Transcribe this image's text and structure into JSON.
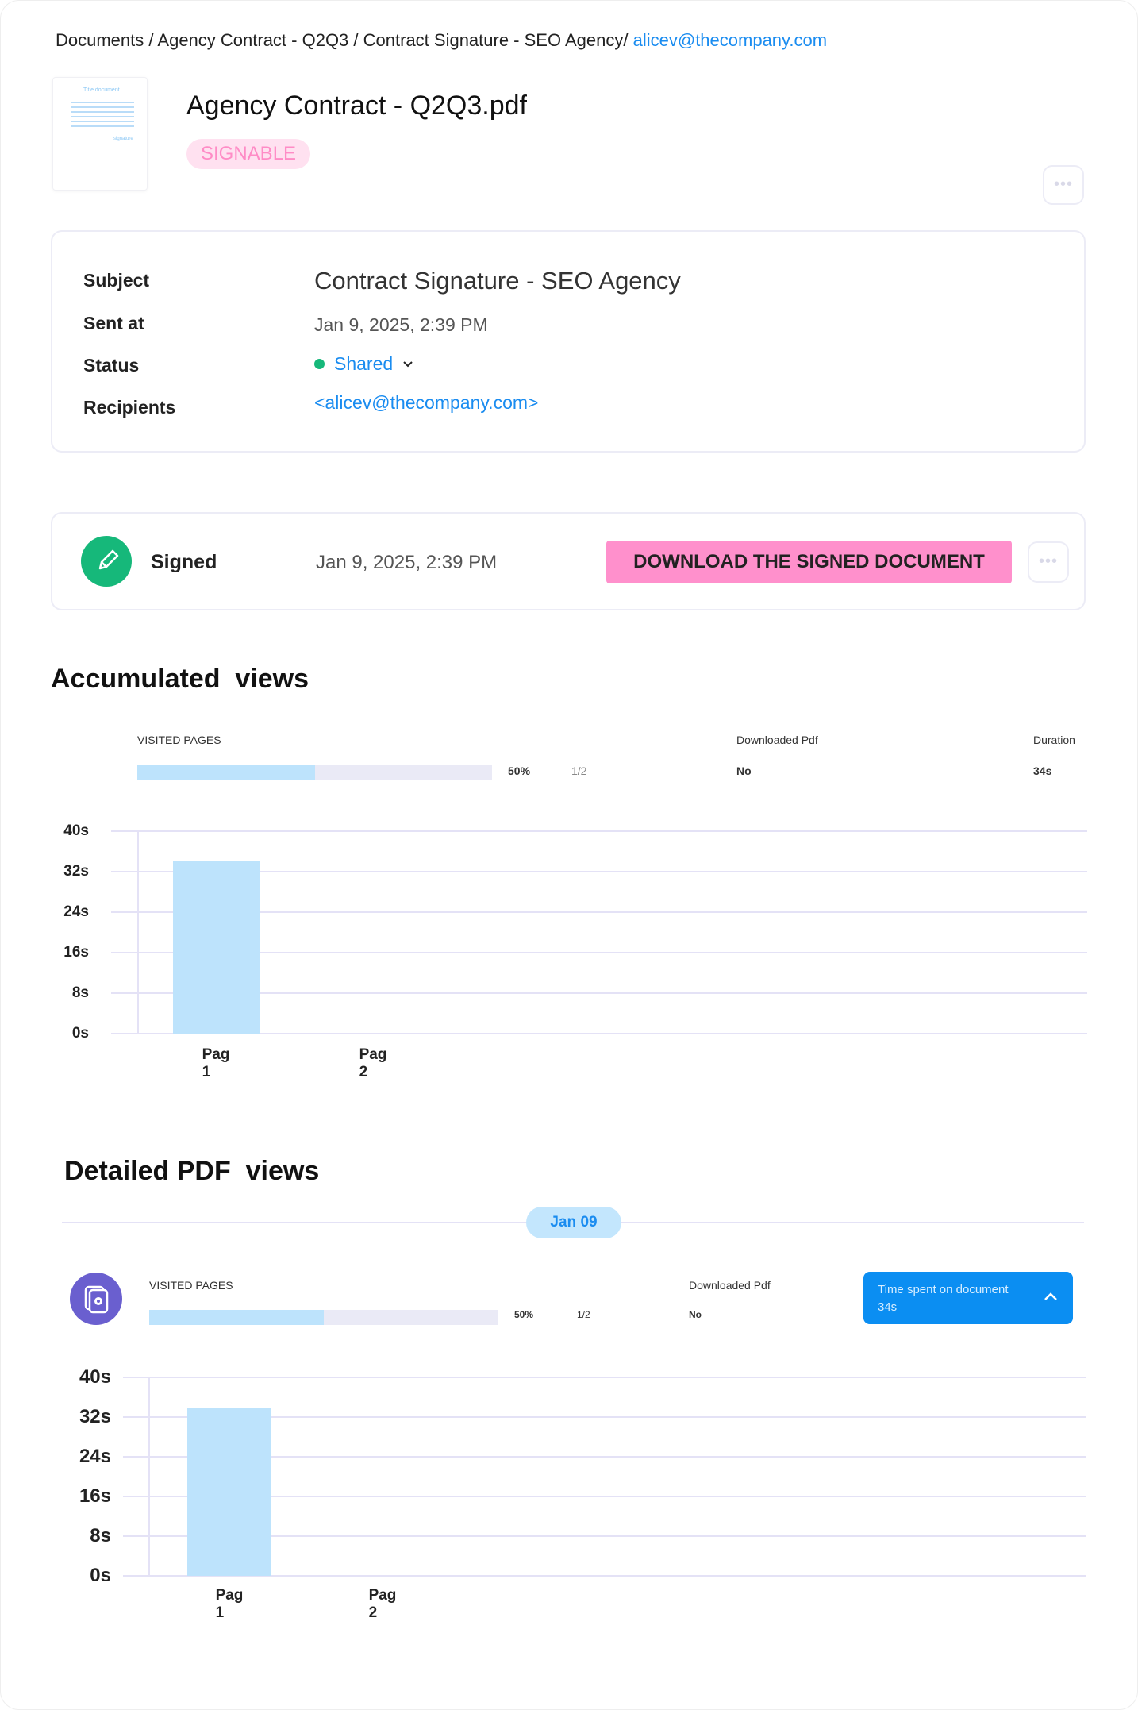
{
  "breadcrumb": {
    "items": [
      "Documents",
      "Agency Contract - Q2Q3",
      "Contract Signature - SEO Agency"
    ],
    "recipient": "alicev@thecompany.com"
  },
  "document": {
    "title": "Agency Contract - Q2Q3.pdf",
    "badge": "SIGNABLE",
    "thumbnail_text": [
      "Title document",
      "signature"
    ]
  },
  "info": {
    "subject_label": "Subject",
    "subject": "Contract Signature - SEO Agency",
    "sent_label": "Sent at",
    "sent": "Jan 9, 2025, 2:39 PM",
    "status_label": "Status",
    "status": "Shared",
    "status_color": "#16b87a",
    "recipients_label": "Recipients",
    "recipients": "<alicev@thecompany.com>"
  },
  "signed": {
    "label": "Signed",
    "date": "Jan 9, 2025, 2:39 PM",
    "download_label": "DOWNLOAD THE SIGNED DOCUMENT",
    "icon": "pencil-icon"
  },
  "more_label": "•••",
  "accumulated": {
    "title": "Accumulated  views",
    "visited_label": "VISITED PAGES",
    "visited_percent": "50%",
    "visited_fraction": "1/2",
    "visited_progress": 0.5,
    "downloaded_label": "Downloaded Pdf",
    "downloaded": "No",
    "duration_label": "Duration",
    "duration": "34s"
  },
  "detailed": {
    "title": "Detailed PDF  views",
    "date_pill": "Jan 09",
    "visited_label": "VISITED PAGES",
    "visited_percent": "50%",
    "visited_fraction": "1/2",
    "visited_progress": 0.5,
    "downloaded_label": "Downloaded Pdf",
    "downloaded": "No",
    "time_label": "Time spent on document",
    "time": "34s"
  },
  "chart_data": [
    {
      "type": "bar",
      "categories": [
        "Pag 1",
        "Pag 2"
      ],
      "values": [
        34,
        0
      ],
      "ylim": [
        0,
        40
      ],
      "yticks": [
        "0s",
        "8s",
        "16s",
        "24s",
        "32s",
        "40s"
      ],
      "ytick_values": [
        0,
        8,
        16,
        24,
        32,
        40
      ],
      "grid": true,
      "color": "#bde3fc"
    },
    {
      "type": "bar",
      "categories": [
        "Pag 1",
        "Pag 2"
      ],
      "values": [
        34,
        0
      ],
      "ylim": [
        0,
        40
      ],
      "yticks": [
        "0s",
        "8s",
        "16s",
        "24s",
        "32s",
        "40s"
      ],
      "ytick_values": [
        0,
        8,
        16,
        24,
        32,
        40
      ],
      "grid": true,
      "color": "#bde3fc"
    }
  ]
}
